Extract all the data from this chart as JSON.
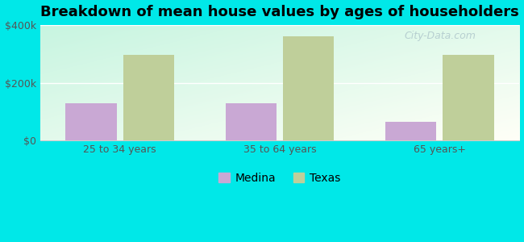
{
  "title": "Breakdown of mean house values by ages of householders",
  "categories": [
    "25 to 34 years",
    "35 to 64 years",
    "65 years+"
  ],
  "medina_values": [
    130000,
    130000,
    65000
  ],
  "texas_values": [
    295000,
    360000,
    295000
  ],
  "ylim": [
    0,
    400000
  ],
  "ytick_labels": [
    "$0",
    "$200k",
    "$400k"
  ],
  "ytick_values": [
    0,
    200000,
    400000
  ],
  "bar_width": 0.32,
  "medina_color": "#c9a8d4",
  "texas_color": "#bfcf9a",
  "background_color": "#00e8e8",
  "legend_labels": [
    "Medina",
    "Texas"
  ],
  "title_fontsize": 13,
  "tick_fontsize": 9,
  "legend_fontsize": 10,
  "watermark": "City-Data.com",
  "watermark_color": "#b0c8cc",
  "grid_color": "#ffffff",
  "spine_color": "#cccccc"
}
